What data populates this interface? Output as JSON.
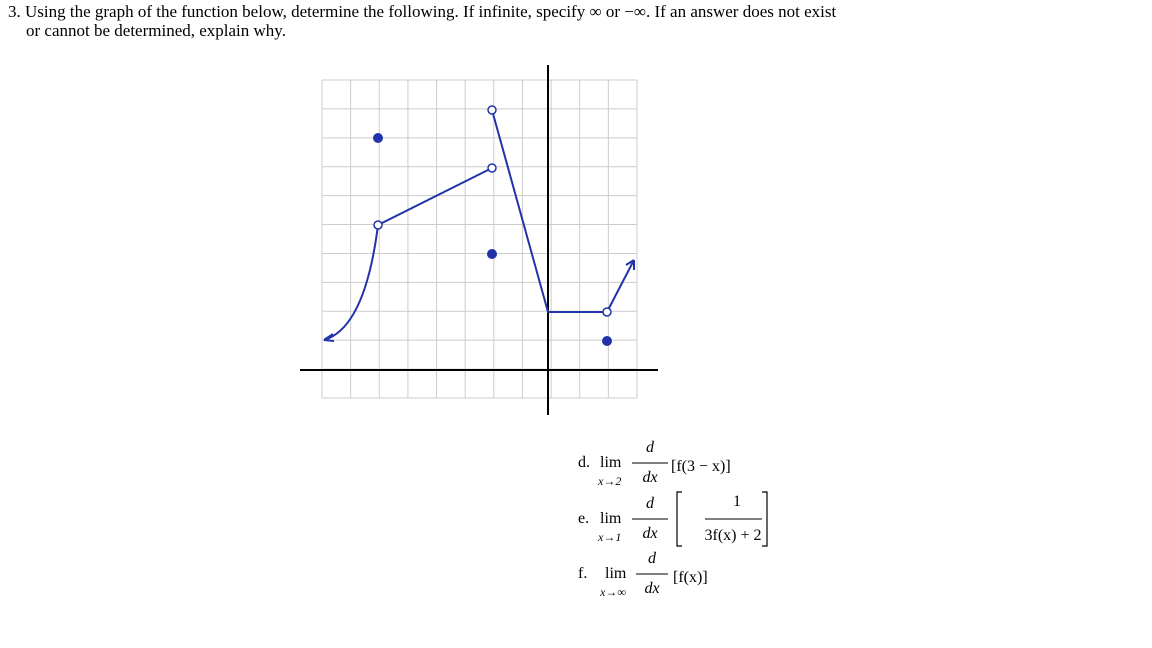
{
  "question": {
    "lines": [
      "3. Using the graph of the function below, determine the following. If infinite, specify ∞ or −∞. If an answer does not exist",
      "or cannot be determined, explain why."
    ]
  },
  "items": [
    {
      "label": "d.",
      "lim": "lim",
      "sub": "x→2",
      "num": "d",
      "den": "dx",
      "expr": "[f(3 − x)]"
    },
    {
      "label": "e.",
      "lim": "lim",
      "sub": "x→1",
      "num": "d",
      "den": "dx",
      "expr_num": "1",
      "expr_den": "3f(x) + 2"
    },
    {
      "label": "f.",
      "lim": "lim",
      "sub": "x→∞",
      "num": "d",
      "den": "dx",
      "expr": "[f(x)]"
    }
  ]
}
